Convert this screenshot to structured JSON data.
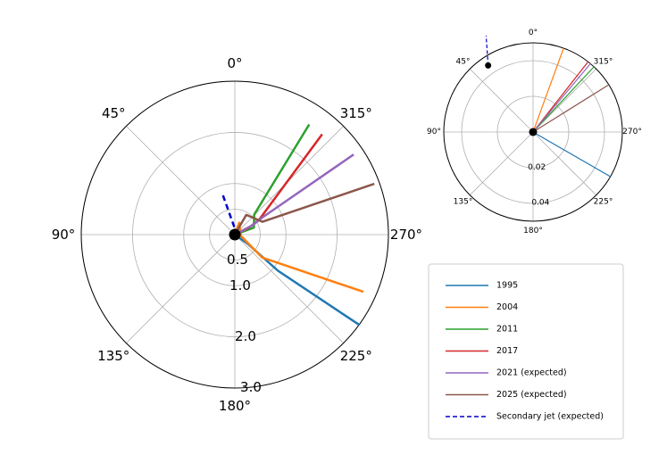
{
  "chart_data": [
    {
      "type": "line",
      "projection": "polar",
      "theta_direction": "counter-clockwise",
      "theta_zero": "top",
      "angle_ticks": [
        "0°",
        "45°",
        "90°",
        "135°",
        "180°",
        "225°",
        "270°",
        "315°"
      ],
      "radial_ticks": [
        {
          "value": 0.5,
          "label": "0.5"
        },
        {
          "value": 1.0,
          "label": "1.0"
        },
        {
          "value": 2.0,
          "label": "2.0"
        },
        {
          "value": 3.0,
          "label": "3.0"
        }
      ],
      "rlim": [
        0,
        3.0
      ],
      "grid": true,
      "series": [
        {
          "name": "1995",
          "color": "#1f77b4",
          "width": 2.5,
          "points": [
            [
              0,
              0
            ],
            [
              235,
              0.3
            ],
            [
              230,
              1.1
            ],
            [
              234,
              3.0
            ]
          ]
        },
        {
          "name": "2004",
          "color": "#ff7f0e",
          "width": 2.5,
          "points": [
            [
              0,
              0
            ],
            [
              340,
              0.25
            ],
            [
              260,
              0.12
            ],
            [
              230,
              0.7
            ],
            [
              246,
              2.75
            ]
          ]
        },
        {
          "name": "2011",
          "color": "#2ca02c",
          "width": 2.5,
          "points": [
            [
              0,
              0
            ],
            [
              290,
              0.4
            ],
            [
              316,
              0.55
            ],
            [
              326,
              2.6
            ]
          ]
        },
        {
          "name": "2017",
          "color": "#d62728",
          "width": 2.5,
          "points": [
            [
              0,
              0
            ],
            [
              296,
              0.3
            ],
            [
              301,
              0.55
            ],
            [
              319,
              2.6
            ]
          ]
        },
        {
          "name": "2021 (expected)",
          "color": "#9467bd",
          "width": 2.5,
          "points": [
            [
              0,
              0
            ],
            [
              298,
              0.4
            ],
            [
              302,
              0.65
            ],
            [
              304,
              2.8
            ]
          ]
        },
        {
          "name": "2025 (expected)",
          "color": "#8c564b",
          "width": 2.5,
          "points": [
            [
              0,
              0
            ],
            [
              330,
              0.45
            ],
            [
              295,
              0.6
            ],
            [
              290,
              2.9
            ]
          ]
        },
        {
          "name": "Secondary jet (expected)",
          "color": "#0000cc",
          "width": 2.5,
          "dashed": true,
          "points": [
            [
              4,
              0.15
            ],
            [
              17,
              0.85
            ]
          ]
        }
      ]
    },
    {
      "type": "line",
      "projection": "polar",
      "theta_direction": "counter-clockwise",
      "theta_zero": "top",
      "angle_ticks": [
        "0°",
        "45°",
        "90°",
        "135°",
        "180°",
        "225°",
        "270°",
        "315°"
      ],
      "radial_ticks": [
        {
          "value": 0.02,
          "label": "0.02"
        },
        {
          "value": 0.04,
          "label": "0.04"
        }
      ],
      "rlim": [
        0,
        0.05
      ],
      "grid": true,
      "series": [
        {
          "name": "1995",
          "color": "#1f77b4",
          "width": 1.2,
          "points": [
            [
              0,
              0
            ],
            [
              240,
              0.05
            ]
          ]
        },
        {
          "name": "2004",
          "color": "#ff7f0e",
          "width": 1.2,
          "points": [
            [
              0,
              0
            ],
            [
              340,
              0.05
            ]
          ]
        },
        {
          "name": "2011",
          "color": "#2ca02c",
          "width": 1.2,
          "points": [
            [
              0,
              0
            ],
            [
              317,
              0.05
            ]
          ]
        },
        {
          "name": "2017",
          "color": "#d62728",
          "width": 1.2,
          "points": [
            [
              0,
              0
            ],
            [
              322,
              0.05
            ]
          ]
        },
        {
          "name": "2021 (expected)",
          "color": "#9467bd",
          "width": 1.2,
          "points": [
            [
              0,
              0
            ],
            [
              320,
              0.05
            ]
          ]
        },
        {
          "name": "2025 (expected)",
          "color": "#8c564b",
          "width": 1.2,
          "points": [
            [
              0,
              0
            ],
            [
              302,
              0.05
            ]
          ]
        },
        {
          "name": "Secondary jet (expected)",
          "color": "#0000cc",
          "width": 1.2,
          "dashed": true,
          "points": [
            [
              34,
              0.045
            ],
            [
              26,
              0.06
            ]
          ]
        }
      ],
      "markers": [
        {
          "theta": 0,
          "r": 0
        },
        {
          "theta": 34,
          "r": 0.045
        }
      ]
    }
  ],
  "legend": {
    "placement": "bottom-right",
    "entries": [
      {
        "label": "1995",
        "color": "#1f77b4",
        "dashed": false
      },
      {
        "label": "2004",
        "color": "#ff7f0e",
        "dashed": false
      },
      {
        "label": "2011",
        "color": "#2ca02c",
        "dashed": false
      },
      {
        "label": "2017",
        "color": "#d62728",
        "dashed": false
      },
      {
        "label": "2021 (expected)",
        "color": "#9467bd",
        "dashed": false
      },
      {
        "label": "2025 (expected)",
        "color": "#8c564b",
        "dashed": false
      },
      {
        "label": "Secondary jet (expected)",
        "color": "#0000cc",
        "dashed": true
      }
    ]
  }
}
